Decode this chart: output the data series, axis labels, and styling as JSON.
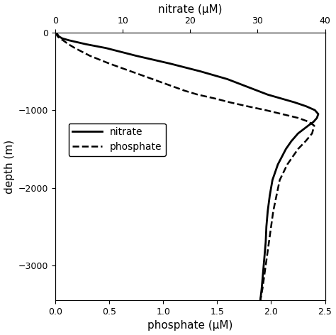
{
  "title": "",
  "ylabel": "depth (m)",
  "xlabel_bottom": "phosphate (μM)",
  "xlabel_top": "nitrate (μM)",
  "depth": [
    0,
    -25,
    -50,
    -75,
    -100,
    -150,
    -200,
    -300,
    -400,
    -500,
    -600,
    -700,
    -750,
    -800,
    -850,
    -900,
    -950,
    -1000,
    -1050,
    -1100,
    -1150,
    -1200,
    -1300,
    -1400,
    -1500,
    -1700,
    -1900,
    -2100,
    -2300,
    -2500,
    -2700,
    -2900,
    -3100,
    -3300,
    -3450
  ],
  "nitrate": [
    0.1,
    0.3,
    0.5,
    1.0,
    2.0,
    4.5,
    7.5,
    12.0,
    17.0,
    21.5,
    25.5,
    28.5,
    30.0,
    31.5,
    33.5,
    35.5,
    37.2,
    38.5,
    39.0,
    38.8,
    38.3,
    37.5,
    36.0,
    35.0,
    34.2,
    33.0,
    32.2,
    31.8,
    31.5,
    31.3,
    31.2,
    31.0,
    30.8,
    30.6,
    30.4
  ],
  "phosphate": [
    0.0,
    0.01,
    0.02,
    0.04,
    0.07,
    0.12,
    0.18,
    0.32,
    0.5,
    0.7,
    0.9,
    1.1,
    1.2,
    1.32,
    1.48,
    1.62,
    1.78,
    1.95,
    2.1,
    2.25,
    2.35,
    2.4,
    2.38,
    2.32,
    2.25,
    2.15,
    2.08,
    2.05,
    2.02,
    2.0,
    1.98,
    1.96,
    1.94,
    1.92,
    1.9
  ],
  "nitrate_xlim": [
    0,
    40
  ],
  "nitrate_xticks": [
    0,
    10,
    20,
    30,
    40
  ],
  "phosphate_xlim": [
    0,
    2.5
  ],
  "phosphate_xticks": [
    0,
    0.5,
    1.0,
    1.5,
    2.0,
    2.5
  ],
  "ylim": [
    -3450,
    0
  ],
  "yticks": [
    0,
    -1000,
    -2000,
    -3000
  ],
  "legend_nitrate": "nitrate",
  "legend_phosphate": "phosphate",
  "line_color": "#000000",
  "background_color": "#ffffff"
}
